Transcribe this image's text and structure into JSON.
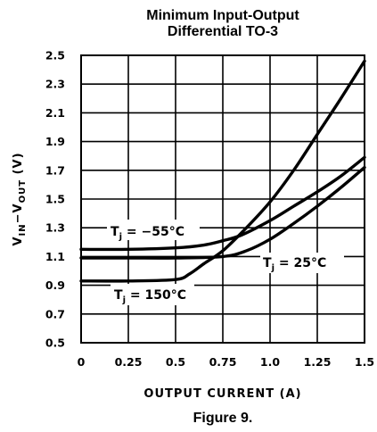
{
  "chart_data": {
    "type": "line",
    "title_line1": "Minimum Input-Output",
    "title_line2": "Differential TO-3",
    "xlabel": "OUTPUT CURRENT (A)",
    "ylabel_parts": [
      "V",
      "IN",
      "−V",
      "OUT",
      " (V)"
    ],
    "xlim": [
      0,
      1.5
    ],
    "ylim": [
      0.5,
      2.5
    ],
    "x_ticks": [
      {
        "value": 0,
        "label": "0"
      },
      {
        "value": 0.25,
        "label": "0.25"
      },
      {
        "value": 0.5,
        "label": "0.5"
      },
      {
        "value": 0.75,
        "label": "0.75"
      },
      {
        "value": 1.0,
        "label": "1.0"
      },
      {
        "value": 1.25,
        "label": "1.25"
      },
      {
        "value": 1.5,
        "label": "1.5"
      }
    ],
    "y_ticks": [
      {
        "value": 0.5,
        "label": "0.5"
      },
      {
        "value": 0.7,
        "label": "0.7"
      },
      {
        "value": 0.9,
        "label": "0.9"
      },
      {
        "value": 1.1,
        "label": "1.1"
      },
      {
        "value": 1.3,
        "label": "1.3"
      },
      {
        "value": 1.5,
        "label": "1.5"
      },
      {
        "value": 1.7,
        "label": "1.7"
      },
      {
        "value": 1.9,
        "label": "1.9"
      },
      {
        "value": 2.1,
        "label": "2.1"
      },
      {
        "value": 2.3,
        "label": "2.3"
      },
      {
        "value": 2.5,
        "label": "2.5"
      }
    ],
    "grid": true,
    "series": [
      {
        "name": "T_j = -55°C",
        "points": [
          [
            0,
            1.15
          ],
          [
            0.25,
            1.15
          ],
          [
            0.5,
            1.16
          ],
          [
            0.65,
            1.18
          ],
          [
            0.75,
            1.21
          ],
          [
            0.85,
            1.25
          ],
          [
            1.0,
            1.35
          ],
          [
            1.125,
            1.45
          ],
          [
            1.25,
            1.55
          ],
          [
            1.375,
            1.66
          ],
          [
            1.5,
            1.79
          ]
        ]
      },
      {
        "name": "T_j = 25°C",
        "points": [
          [
            0,
            1.09
          ],
          [
            0.25,
            1.09
          ],
          [
            0.5,
            1.09
          ],
          [
            0.75,
            1.1
          ],
          [
            0.875,
            1.14
          ],
          [
            1.0,
            1.22
          ],
          [
            1.125,
            1.33
          ],
          [
            1.25,
            1.45
          ],
          [
            1.375,
            1.58
          ],
          [
            1.5,
            1.72
          ]
        ]
      },
      {
        "name": "T_j = 150°C",
        "points": [
          [
            0,
            0.93
          ],
          [
            0.25,
            0.93
          ],
          [
            0.5,
            0.94
          ],
          [
            0.575,
            0.98
          ],
          [
            0.65,
            1.05
          ],
          [
            0.75,
            1.14
          ],
          [
            0.875,
            1.3
          ],
          [
            1.0,
            1.48
          ],
          [
            1.125,
            1.7
          ],
          [
            1.25,
            1.95
          ],
          [
            1.375,
            2.2
          ],
          [
            1.5,
            2.46
          ]
        ]
      }
    ],
    "annotations": [
      {
        "series": "T_j = -55°C",
        "prefix": "T",
        "sub": "j",
        "text": " = −55°C"
      },
      {
        "series": "T_j = 25°C",
        "prefix": "T",
        "sub": "j",
        "text": " = 25°C"
      },
      {
        "series": "T_j = 150°C",
        "prefix": "T",
        "sub": "j",
        "text": " = 150°C"
      }
    ],
    "caption": "Figure 9."
  }
}
